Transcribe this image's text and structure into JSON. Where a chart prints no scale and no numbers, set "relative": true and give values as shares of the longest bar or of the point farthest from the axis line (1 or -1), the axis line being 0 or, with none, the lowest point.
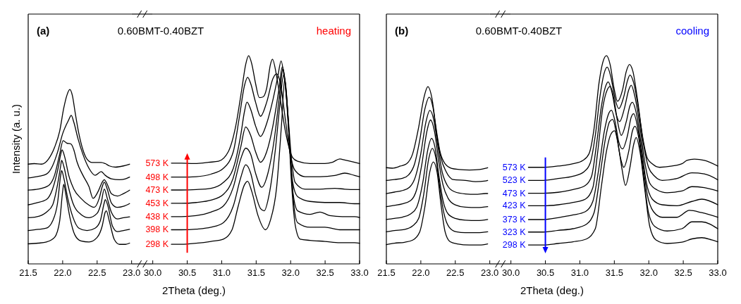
{
  "chart_data": [
    {
      "type": "line",
      "ylabel": "Intensity (a. u.)",
      "relative": true,
      "xlim": [
        21.5,
        23.0
      ],
      "xticks": [
        21.5,
        {
          "value": 22,
          "label": "22.0"
        },
        22.5,
        {
          "value": 23,
          "label": "23.0"
        }
      ],
      "annotations": [
        "(a)"
      ],
      "series": [
        {
          "color": "#000000",
          "x": [
            21.5,
            21.588,
            21.691,
            21.794,
            21.882,
            21.956,
            22.015,
            22.065,
            22.103,
            22.141,
            22.182,
            22.235,
            22.294,
            22.353,
            22.427,
            22.5,
            22.559,
            22.618,
            22.677,
            22.765,
            22.882,
            22.971
          ],
          "values": [
            0.572,
            0.575,
            0.572,
            0.601,
            0.668,
            0.76,
            0.892,
            0.971,
            1.0,
            0.965,
            0.866,
            0.747,
            0.654,
            0.601,
            0.582,
            0.582,
            0.582,
            0.575,
            0.562,
            0.555,
            0.562,
            0.572
          ]
        },
        {
          "color": "#000000",
          "x": [
            21.5,
            21.647,
            21.765,
            21.853,
            21.926,
            22.0,
            22.088,
            22.124,
            22.162,
            22.221,
            22.294,
            22.382,
            22.471,
            22.559,
            22.618,
            22.706,
            22.824,
            22.912,
            22.971
          ],
          "values": [
            0.493,
            0.502,
            0.515,
            0.562,
            0.641,
            0.747,
            0.826,
            0.852,
            0.812,
            0.72,
            0.628,
            0.548,
            0.508,
            0.529,
            0.508,
            0.488,
            0.483,
            0.488,
            0.498
          ]
        },
        {
          "color": "#000000",
          "x": [
            21.5,
            21.647,
            21.794,
            21.882,
            21.956,
            22.006,
            22.059,
            22.118,
            22.162,
            22.206,
            22.294,
            22.382,
            22.441,
            22.515,
            22.574,
            22.603,
            22.647,
            22.706,
            22.794,
            22.882,
            22.971
          ],
          "values": [
            0.423,
            0.429,
            0.449,
            0.508,
            0.628,
            0.707,
            0.693,
            0.688,
            0.654,
            0.587,
            0.508,
            0.443,
            0.376,
            0.416,
            0.469,
            0.483,
            0.456,
            0.403,
            0.389,
            0.403,
            0.423
          ]
        },
        {
          "color": "#000000",
          "x": [
            21.5,
            21.618,
            21.765,
            21.853,
            21.926,
            21.98,
            21.991,
            22.029,
            22.088,
            22.162,
            22.265,
            22.382,
            22.456,
            22.53,
            22.574,
            22.603,
            22.647,
            22.706,
            22.794,
            22.882,
            22.971
          ],
          "values": [
            0.339,
            0.35,
            0.369,
            0.429,
            0.535,
            0.641,
            0.654,
            0.614,
            0.508,
            0.429,
            0.376,
            0.337,
            0.324,
            0.376,
            0.443,
            0.469,
            0.429,
            0.35,
            0.324,
            0.33,
            0.346
          ]
        },
        {
          "color": "#000000",
          "x": [
            21.5,
            21.618,
            21.765,
            21.853,
            21.926,
            21.971,
            21.985,
            22.015,
            22.074,
            22.147,
            22.265,
            22.382,
            22.5,
            22.559,
            22.603,
            22.647,
            22.706,
            22.794,
            22.882,
            22.971
          ],
          "values": [
            0.265,
            0.27,
            0.297,
            0.337,
            0.456,
            0.562,
            0.594,
            0.562,
            0.456,
            0.35,
            0.284,
            0.265,
            0.29,
            0.35,
            0.429,
            0.376,
            0.297,
            0.258,
            0.265,
            0.27
          ]
        },
        {
          "color": "#000000",
          "x": [
            21.5,
            21.647,
            21.765,
            21.853,
            21.926,
            21.971,
            21.985,
            22.015,
            22.074,
            22.147,
            22.235,
            22.353,
            22.471,
            22.544,
            22.603,
            22.618,
            22.662,
            22.721,
            22.794,
            22.882,
            22.971
          ],
          "values": [
            0.191,
            0.198,
            0.205,
            0.245,
            0.35,
            0.508,
            0.535,
            0.495,
            0.376,
            0.27,
            0.205,
            0.191,
            0.205,
            0.245,
            0.35,
            0.369,
            0.324,
            0.218,
            0.185,
            0.191,
            0.198
          ]
        },
        {
          "color": "#000000",
          "x": [
            21.5,
            21.647,
            21.765,
            21.882,
            21.956,
            22.0,
            22.015,
            22.044,
            22.103,
            22.177,
            22.265,
            22.382,
            22.5,
            22.574,
            22.618,
            22.633,
            22.677,
            22.75,
            22.824,
            22.912,
            22.971
          ],
          "values": [
            0.115,
            0.119,
            0.126,
            0.152,
            0.245,
            0.416,
            0.456,
            0.403,
            0.27,
            0.166,
            0.132,
            0.126,
            0.152,
            0.218,
            0.297,
            0.304,
            0.245,
            0.139,
            0.112,
            0.112,
            0.119
          ]
        }
      ]
    },
    {
      "type": "line",
      "title": "0.60BMT-0.40BZT",
      "xlabel": "2Theta (deg.)",
      "relative": true,
      "xlim": [
        30.0,
        33.0
      ],
      "xticks": [
        {
          "value": 30,
          "label": "30.0"
        },
        30.5,
        {
          "value": 31,
          "label": "31.0"
        },
        31.5,
        {
          "value": 32,
          "label": "32.0"
        },
        32.5,
        {
          "value": 33,
          "label": "33.0"
        }
      ],
      "annotations": [
        "heating"
      ],
      "series": [
        {
          "name": "573 K",
          "color": "#000000",
          "x": [
            30.27,
            30.414,
            30.593,
            30.701,
            30.809,
            30.953,
            31.096,
            31.204,
            31.294,
            31.348,
            31.391,
            31.438,
            31.491,
            31.545,
            31.599,
            31.653,
            31.707,
            31.736,
            31.797,
            31.851,
            31.922,
            31.994,
            32.03,
            32.102,
            32.282,
            32.497,
            32.605,
            32.713,
            32.785,
            32.928,
            33.0
          ],
          "values": [
            0.484,
            0.484,
            0.482,
            0.484,
            0.488,
            0.493,
            0.539,
            0.663,
            0.845,
            0.958,
            1.0,
            0.958,
            0.867,
            0.799,
            0.802,
            0.845,
            0.958,
            0.983,
            0.901,
            0.788,
            0.641,
            0.539,
            0.51,
            0.493,
            0.482,
            0.482,
            0.488,
            0.504,
            0.499,
            0.488,
            0.482
          ]
        },
        {
          "name": "498 K",
          "color": "#000000",
          "x": [
            30.27,
            30.414,
            30.629,
            30.845,
            31.024,
            31.168,
            31.258,
            31.33,
            31.376,
            31.42,
            31.491,
            31.563,
            31.653,
            31.743,
            31.797,
            31.851,
            31.922,
            31.994,
            32.066,
            32.21,
            32.425,
            32.641,
            32.785,
            32.928,
            33.0
          ],
          "values": [
            0.417,
            0.417,
            0.419,
            0.431,
            0.459,
            0.539,
            0.709,
            0.856,
            0.896,
            0.867,
            0.777,
            0.709,
            0.777,
            0.89,
            0.913,
            0.867,
            0.697,
            0.527,
            0.448,
            0.419,
            0.419,
            0.425,
            0.436,
            0.425,
            0.419
          ]
        },
        {
          "name": "473 K",
          "color": "#000000",
          "x": [
            30.27,
            30.414,
            30.629,
            30.845,
            31.024,
            31.168,
            31.276,
            31.33,
            31.366,
            31.42,
            31.491,
            31.563,
            31.653,
            31.743,
            31.815,
            31.861,
            31.905,
            31.958,
            32.012,
            32.066,
            32.21,
            32.425,
            32.641,
            32.785,
            32.928,
            33.0
          ],
          "values": [
            0.355,
            0.355,
            0.357,
            0.363,
            0.391,
            0.459,
            0.618,
            0.731,
            0.777,
            0.743,
            0.663,
            0.612,
            0.675,
            0.788,
            0.901,
            0.975,
            0.901,
            0.731,
            0.504,
            0.391,
            0.359,
            0.359,
            0.363,
            0.359,
            0.357,
            0.357
          ]
        },
        {
          "name": "453 K",
          "color": "#000000",
          "x": [
            30.27,
            30.414,
            30.629,
            30.845,
            31.024,
            31.168,
            31.276,
            31.348,
            31.42,
            31.491,
            31.563,
            31.653,
            31.743,
            31.833,
            31.879,
            31.922,
            31.976,
            32.03,
            32.102,
            32.282,
            32.497,
            32.713,
            32.928,
            33.0
          ],
          "values": [
            0.291,
            0.291,
            0.295,
            0.306,
            0.334,
            0.414,
            0.561,
            0.658,
            0.618,
            0.539,
            0.488,
            0.539,
            0.663,
            0.845,
            0.947,
            0.867,
            0.618,
            0.391,
            0.323,
            0.3,
            0.295,
            0.295,
            0.289,
            0.289
          ]
        },
        {
          "name": "438 K",
          "color": "#000000",
          "x": [
            30.27,
            30.414,
            30.629,
            30.845,
            31.024,
            31.168,
            31.276,
            31.348,
            31.42,
            31.491,
            31.581,
            31.671,
            31.761,
            31.851,
            31.887,
            31.93,
            31.987,
            32.037,
            32.102,
            32.282,
            32.425,
            32.569,
            32.749,
            32.928,
            33.0
          ],
          "values": [
            0.227,
            0.227,
            0.232,
            0.249,
            0.278,
            0.368,
            0.504,
            0.556,
            0.527,
            0.436,
            0.368,
            0.436,
            0.595,
            0.845,
            0.938,
            0.845,
            0.561,
            0.334,
            0.255,
            0.238,
            0.249,
            0.232,
            0.227,
            0.227,
            0.223
          ]
        },
        {
          "name": "398 K",
          "color": "#000000",
          "x": [
            30.27,
            30.414,
            30.629,
            30.845,
            31.024,
            31.168,
            31.276,
            31.348,
            31.42,
            31.491,
            31.563,
            31.617,
            31.689,
            31.779,
            31.851,
            31.897,
            31.94,
            31.994,
            32.048,
            32.102,
            32.282,
            32.497,
            32.713,
            32.928,
            33.0
          ],
          "values": [
            0.164,
            0.164,
            0.167,
            0.176,
            0.198,
            0.278,
            0.414,
            0.476,
            0.436,
            0.334,
            0.266,
            0.255,
            0.334,
            0.55,
            0.788,
            0.907,
            0.811,
            0.527,
            0.278,
            0.198,
            0.176,
            0.176,
            0.164,
            0.164,
            0.164
          ]
        },
        {
          "name": "298 K",
          "color": "#000000",
          "x": [
            30.27,
            30.414,
            30.629,
            30.845,
            31.024,
            31.15,
            31.24,
            31.33,
            31.376,
            31.438,
            31.527,
            31.635,
            31.707,
            31.797,
            31.869,
            31.915,
            31.958,
            32.012,
            32.066,
            32.138,
            32.282,
            32.497,
            32.713,
            32.928,
            33.0
          ],
          "values": [
            0.094,
            0.094,
            0.099,
            0.108,
            0.119,
            0.164,
            0.278,
            0.38,
            0.397,
            0.346,
            0.232,
            0.164,
            0.21,
            0.368,
            0.675,
            0.89,
            0.731,
            0.391,
            0.187,
            0.119,
            0.113,
            0.108,
            0.102,
            0.102,
            0.099
          ]
        }
      ]
    },
    {
      "type": "line",
      "relative": true,
      "xlim": [
        21.5,
        23.0
      ],
      "xticks": [
        21.5,
        {
          "value": 22,
          "label": "22.0"
        },
        22.5,
        {
          "value": 23,
          "label": "23.0"
        }
      ],
      "annotations": [
        "(b)"
      ],
      "series": [
        {
          "color": "#000000",
          "x": [
            21.5,
            21.587,
            21.705,
            21.793,
            21.881,
            21.969,
            22.043,
            22.102,
            22.161,
            22.219,
            22.278,
            22.352,
            22.44,
            22.558,
            22.705,
            22.852,
            22.94,
            22.97
          ],
          "values": [
            0.543,
            0.54,
            0.552,
            0.565,
            0.621,
            0.772,
            0.935,
            1.0,
            0.935,
            0.772,
            0.634,
            0.565,
            0.54,
            0.533,
            0.53,
            0.533,
            0.54,
            0.543
          ]
        },
        {
          "color": "#000000",
          "x": [
            21.5,
            21.616,
            21.734,
            21.822,
            21.91,
            21.984,
            22.058,
            22.122,
            22.175,
            22.234,
            22.293,
            22.366,
            22.469,
            22.646,
            22.793,
            22.94,
            22.97
          ],
          "values": [
            0.471,
            0.476,
            0.483,
            0.502,
            0.565,
            0.697,
            0.873,
            0.941,
            0.885,
            0.721,
            0.596,
            0.521,
            0.476,
            0.471,
            0.464,
            0.468,
            0.471
          ]
        },
        {
          "color": "#000000",
          "x": [
            21.5,
            21.616,
            21.734,
            21.837,
            21.925,
            21.999,
            22.072,
            22.131,
            22.19,
            22.249,
            22.308,
            22.381,
            22.484,
            22.646,
            22.793,
            22.94,
            22.97
          ],
          "values": [
            0.397,
            0.405,
            0.414,
            0.433,
            0.496,
            0.621,
            0.797,
            0.866,
            0.809,
            0.659,
            0.521,
            0.445,
            0.408,
            0.395,
            0.393,
            0.397,
            0.397
          ]
        },
        {
          "color": "#000000",
          "x": [
            21.5,
            21.616,
            21.734,
            21.852,
            21.94,
            22.013,
            22.087,
            22.14,
            22.199,
            22.258,
            22.322,
            22.396,
            22.499,
            22.646,
            22.822,
            22.97
          ],
          "values": [
            0.323,
            0.33,
            0.339,
            0.357,
            0.42,
            0.558,
            0.746,
            0.812,
            0.746,
            0.583,
            0.445,
            0.37,
            0.333,
            0.32,
            0.318,
            0.323
          ]
        },
        {
          "color": "#000000",
          "x": [
            21.5,
            21.616,
            21.734,
            21.852,
            21.94,
            22.028,
            22.102,
            22.155,
            22.205,
            22.263,
            22.322,
            22.396,
            22.499,
            22.646,
            22.822,
            22.97
          ],
          "values": [
            0.251,
            0.257,
            0.264,
            0.282,
            0.32,
            0.458,
            0.646,
            0.708,
            0.659,
            0.496,
            0.357,
            0.282,
            0.257,
            0.247,
            0.245,
            0.251
          ]
        },
        {
          "color": "#000000",
          "x": [
            21.5,
            21.616,
            21.763,
            21.881,
            21.969,
            22.043,
            22.116,
            22.166,
            22.219,
            22.278,
            22.337,
            22.411,
            22.514,
            22.646,
            22.822,
            22.97
          ],
          "values": [
            0.181,
            0.188,
            0.194,
            0.214,
            0.257,
            0.395,
            0.596,
            0.652,
            0.596,
            0.42,
            0.282,
            0.207,
            0.181,
            0.176,
            0.176,
            0.181
          ]
        },
        {
          "color": "#000000",
          "x": [
            21.5,
            21.616,
            21.763,
            21.881,
            21.984,
            22.058,
            22.131,
            22.181,
            22.234,
            22.293,
            22.352,
            22.425,
            22.528,
            22.705,
            22.852,
            22.97
          ],
          "values": [
            0.109,
            0.117,
            0.122,
            0.134,
            0.181,
            0.32,
            0.521,
            0.575,
            0.521,
            0.333,
            0.181,
            0.125,
            0.113,
            0.107,
            0.107,
            0.113
          ]
        }
      ]
    },
    {
      "type": "line",
      "title": "0.60BMT-0.40BZT",
      "xlabel": "2Theta (deg.)",
      "relative": true,
      "xlim": [
        30.0,
        33.0
      ],
      "xticks": [
        {
          "value": 30,
          "label": "30.0"
        },
        30.5,
        {
          "value": 31,
          "label": "31.0"
        },
        31.5,
        {
          "value": 32,
          "label": "32.0"
        },
        32.5,
        {
          "value": 33,
          "label": "33.0"
        }
      ],
      "annotations": [
        "cooling"
      ],
      "series": [
        {
          "name": "573 K",
          "color": "#000000",
          "x": [
            30.254,
            30.47,
            30.685,
            30.901,
            31.044,
            31.134,
            31.206,
            31.278,
            31.332,
            31.386,
            31.44,
            31.494,
            31.547,
            31.619,
            31.673,
            31.72,
            31.77,
            31.835,
            31.907,
            31.978,
            32.05,
            32.158,
            32.338,
            32.481,
            32.553,
            32.661,
            32.805,
            33.0
          ],
          "values": [
            0.464,
            0.464,
            0.47,
            0.481,
            0.497,
            0.53,
            0.65,
            0.869,
            0.967,
            1.0,
            0.956,
            0.847,
            0.781,
            0.836,
            0.924,
            0.958,
            0.924,
            0.792,
            0.617,
            0.508,
            0.481,
            0.464,
            0.47,
            0.481,
            0.497,
            0.503,
            0.497,
            0.47
          ]
        },
        {
          "name": "523 K",
          "color": "#000000",
          "x": [
            30.254,
            30.47,
            30.685,
            30.901,
            31.062,
            31.152,
            31.224,
            31.296,
            31.35,
            31.397,
            31.447,
            31.511,
            31.565,
            31.637,
            31.691,
            31.727,
            31.781,
            31.853,
            31.924,
            31.996,
            32.086,
            32.194,
            32.409,
            32.625,
            32.805,
            33.0
          ],
          "values": [
            0.401,
            0.401,
            0.41,
            0.421,
            0.443,
            0.486,
            0.617,
            0.814,
            0.913,
            0.945,
            0.902,
            0.792,
            0.746,
            0.803,
            0.88,
            0.907,
            0.869,
            0.738,
            0.574,
            0.464,
            0.421,
            0.401,
            0.41,
            0.437,
            0.432,
            0.404
          ]
        },
        {
          "name": "473 K",
          "color": "#000000",
          "x": [
            30.254,
            30.47,
            30.685,
            30.901,
            31.08,
            31.17,
            31.242,
            31.314,
            31.368,
            31.411,
            31.465,
            31.529,
            31.576,
            31.648,
            31.709,
            31.745,
            31.799,
            31.871,
            31.943,
            32.014,
            32.122,
            32.266,
            32.481,
            32.625,
            32.805,
            33.0
          ],
          "values": [
            0.339,
            0.339,
            0.344,
            0.357,
            0.377,
            0.421,
            0.574,
            0.76,
            0.847,
            0.874,
            0.825,
            0.716,
            0.683,
            0.749,
            0.836,
            0.858,
            0.803,
            0.661,
            0.486,
            0.388,
            0.355,
            0.342,
            0.35,
            0.371,
            0.366,
            0.35
          ]
        },
        {
          "name": "423 K",
          "color": "#000000",
          "x": [
            30.254,
            30.47,
            30.685,
            30.901,
            31.08,
            31.188,
            31.26,
            31.332,
            31.397,
            31.44,
            31.494,
            31.547,
            31.601,
            31.673,
            31.727,
            31.763,
            31.817,
            31.889,
            31.96,
            32.05,
            32.194,
            32.409,
            32.625,
            32.769,
            33.0
          ],
          "values": [
            0.279,
            0.279,
            0.284,
            0.295,
            0.311,
            0.366,
            0.541,
            0.749,
            0.836,
            0.852,
            0.792,
            0.683,
            0.617,
            0.683,
            0.76,
            0.776,
            0.727,
            0.574,
            0.399,
            0.311,
            0.284,
            0.279,
            0.3,
            0.311,
            0.284
          ]
        },
        {
          "name": "373 K",
          "color": "#000000",
          "x": [
            30.254,
            30.47,
            30.685,
            30.901,
            31.08,
            31.188,
            31.278,
            31.35,
            31.411,
            31.458,
            31.511,
            31.565,
            31.619,
            31.691,
            31.745,
            31.781,
            31.835,
            31.907,
            31.978,
            32.068,
            32.194,
            32.409,
            32.589,
            32.769,
            33.0
          ],
          "values": [
            0.213,
            0.213,
            0.222,
            0.235,
            0.251,
            0.3,
            0.464,
            0.628,
            0.716,
            0.738,
            0.683,
            0.585,
            0.552,
            0.617,
            0.705,
            0.721,
            0.661,
            0.497,
            0.333,
            0.251,
            0.224,
            0.224,
            0.257,
            0.246,
            0.224
          ]
        },
        {
          "name": "323 K",
          "color": "#000000",
          "x": [
            30.254,
            30.47,
            30.685,
            30.901,
            31.098,
            31.206,
            31.296,
            31.368,
            31.432,
            31.476,
            31.529,
            31.583,
            31.637,
            31.709,
            31.763,
            31.799,
            31.853,
            31.924,
            31.996,
            32.086,
            32.266,
            32.481,
            32.625,
            32.769,
            33.0
          ],
          "values": [
            0.153,
            0.153,
            0.161,
            0.169,
            0.191,
            0.246,
            0.432,
            0.596,
            0.683,
            0.694,
            0.628,
            0.519,
            0.464,
            0.541,
            0.639,
            0.661,
            0.607,
            0.421,
            0.246,
            0.18,
            0.158,
            0.169,
            0.202,
            0.202,
            0.169
          ]
        },
        {
          "name": "298 K",
          "color": "#000000",
          "x": [
            30.254,
            30.47,
            30.685,
            30.901,
            31.098,
            31.224,
            31.314,
            31.386,
            31.45,
            31.504,
            31.555,
            31.612,
            31.662,
            31.727,
            31.781,
            31.817,
            31.871,
            31.943,
            32.014,
            32.104,
            32.266,
            32.481,
            32.625,
            32.769,
            32.912,
            33.0
          ],
          "values": [
            0.091,
            0.091,
            0.098,
            0.106,
            0.12,
            0.169,
            0.377,
            0.541,
            0.623,
            0.639,
            0.574,
            0.454,
            0.377,
            0.464,
            0.574,
            0.607,
            0.541,
            0.355,
            0.18,
            0.115,
            0.098,
            0.104,
            0.12,
            0.126,
            0.115,
            0.106
          ]
        }
      ]
    }
  ]
}
